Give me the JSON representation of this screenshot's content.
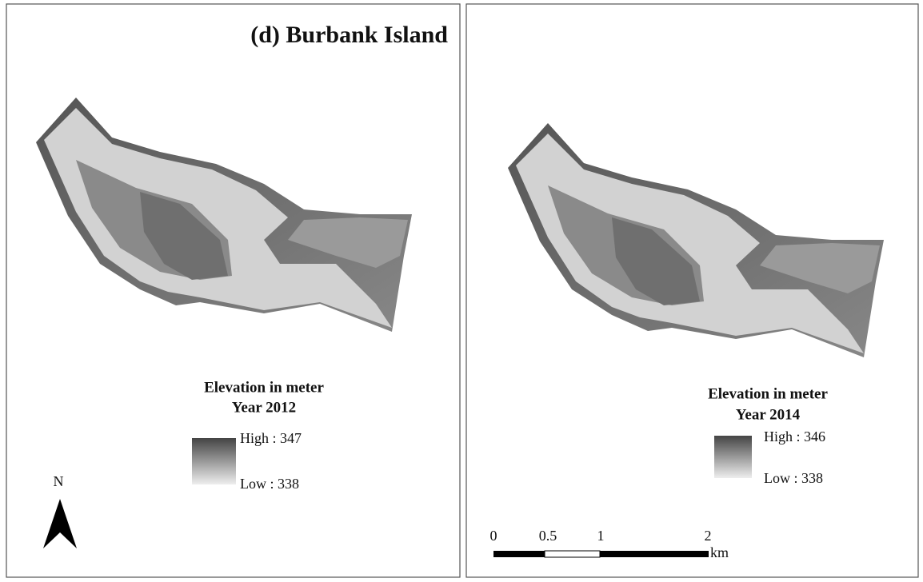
{
  "title": "(d) Burbank Island",
  "panels": [
    {
      "legend_title": [
        "Elevation in meter",
        "Year 2012"
      ],
      "high_label": "High : 347",
      "low_label": "Low : 338"
    },
    {
      "legend_title": [
        "Elevation in meter",
        "Year 2014"
      ],
      "high_label": "High : 346",
      "low_label": "Low : 338"
    }
  ],
  "north_arrow": "N",
  "scale_bar": {
    "labels": [
      "0",
      "0.5",
      "1",
      "2"
    ],
    "unit": "km"
  }
}
